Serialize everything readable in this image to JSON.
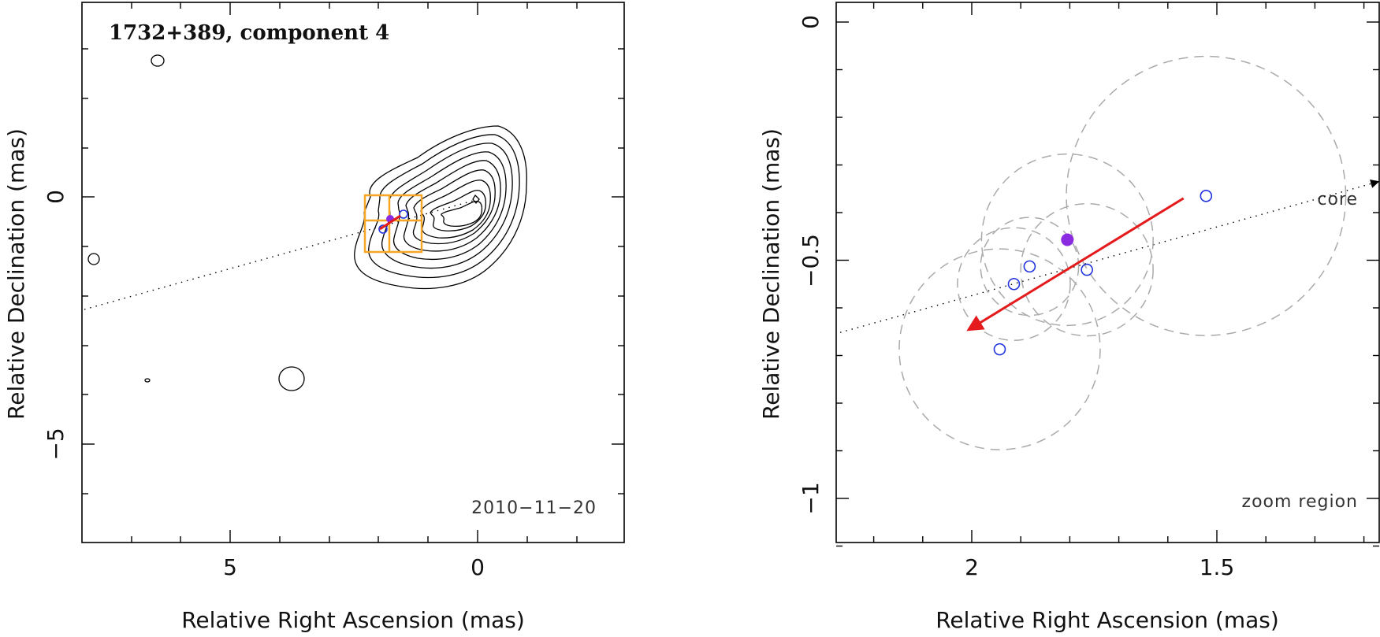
{
  "chart_data": [
    {
      "type": "scatter",
      "title": "1732+389, component 4",
      "xlabel": "Relative Right Ascension (mas)",
      "ylabel": "Relative Declination (mas)",
      "xlim": [
        8.0,
        -3.0
      ],
      "ylim": [
        -7.0,
        4.0
      ],
      "x_ticks": [
        5,
        0
      ],
      "x_tick_labels": [
        "5",
        "0"
      ],
      "y_ticks": [
        0,
        -5
      ],
      "y_tick_labels": [
        "0",
        "−5"
      ],
      "epoch_label": "2010−11−20",
      "contours": "radio map contours around the core at (0,0) extending to the north-east",
      "zoom_box": {
        "x_range": [
          1.15,
          2.3
        ],
        "y_range": [
          -1.1,
          0.05
        ],
        "color": "#f5a623"
      },
      "jet_axis": {
        "from": [
          8.0,
          -2.3
        ],
        "to": [
          0.0,
          0.0
        ],
        "style": "dotted"
      },
      "component_positions": [
        {
          "x": 1.8,
          "y": -0.45,
          "marker": "filled",
          "color": "#8a2be2"
        },
        {
          "x": 1.9,
          "y": -0.65,
          "marker": "open",
          "color": "#2233dd"
        },
        {
          "x": 1.5,
          "y": -0.35,
          "marker": "open",
          "color": "#2233dd"
        }
      ],
      "motion_arrow": {
        "from": [
          1.56,
          -0.38
        ],
        "to": [
          1.98,
          -0.66
        ],
        "color": "#e41a1c"
      }
    },
    {
      "type": "scatter",
      "title": "zoom region",
      "xlabel": "Relative Right Ascension (mas)",
      "ylabel": "Relative Declination (mas)",
      "xlim": [
        2.28,
        1.17
      ],
      "ylim": [
        -1.1,
        0.05
      ],
      "x_ticks": [
        2,
        1.5
      ],
      "x_tick_labels": [
        "2",
        "1.5"
      ],
      "y_ticks": [
        0,
        -0.5,
        -1
      ],
      "y_tick_labels": [
        "0",
        "−0.5",
        "−1"
      ],
      "zoom_label": "zoom region",
      "core_label": "core",
      "jet_axis": {
        "from": [
          2.28,
          -0.655
        ],
        "to": [
          1.17,
          -0.335
        ],
        "style": "dotted",
        "arrow": "core"
      },
      "components": [
        {
          "x": 1.805,
          "y": -0.457,
          "type": "filled",
          "color": "#8a2be2",
          "radius": 0.175
        },
        {
          "x": 1.522,
          "y": -0.365,
          "type": "open",
          "color": "#2233dd",
          "radius": 0.285
        },
        {
          "x": 1.882,
          "y": -0.513,
          "type": "open",
          "color": "#2233dd",
          "radius": 0.1
        },
        {
          "x": 1.914,
          "y": -0.55,
          "type": "open",
          "color": "#2233dd",
          "radius": 0.115
        },
        {
          "x": 1.765,
          "y": -0.52,
          "type": "open",
          "color": "#2233dd",
          "radius": 0.135
        },
        {
          "x": 1.943,
          "y": -0.687,
          "type": "open",
          "color": "#2233dd",
          "radius": 0.205
        }
      ],
      "motion_arrow": {
        "from": [
          1.568,
          -0.37
        ],
        "to": [
          2.005,
          -0.645
        ],
        "color": "#e41a1c"
      }
    }
  ]
}
